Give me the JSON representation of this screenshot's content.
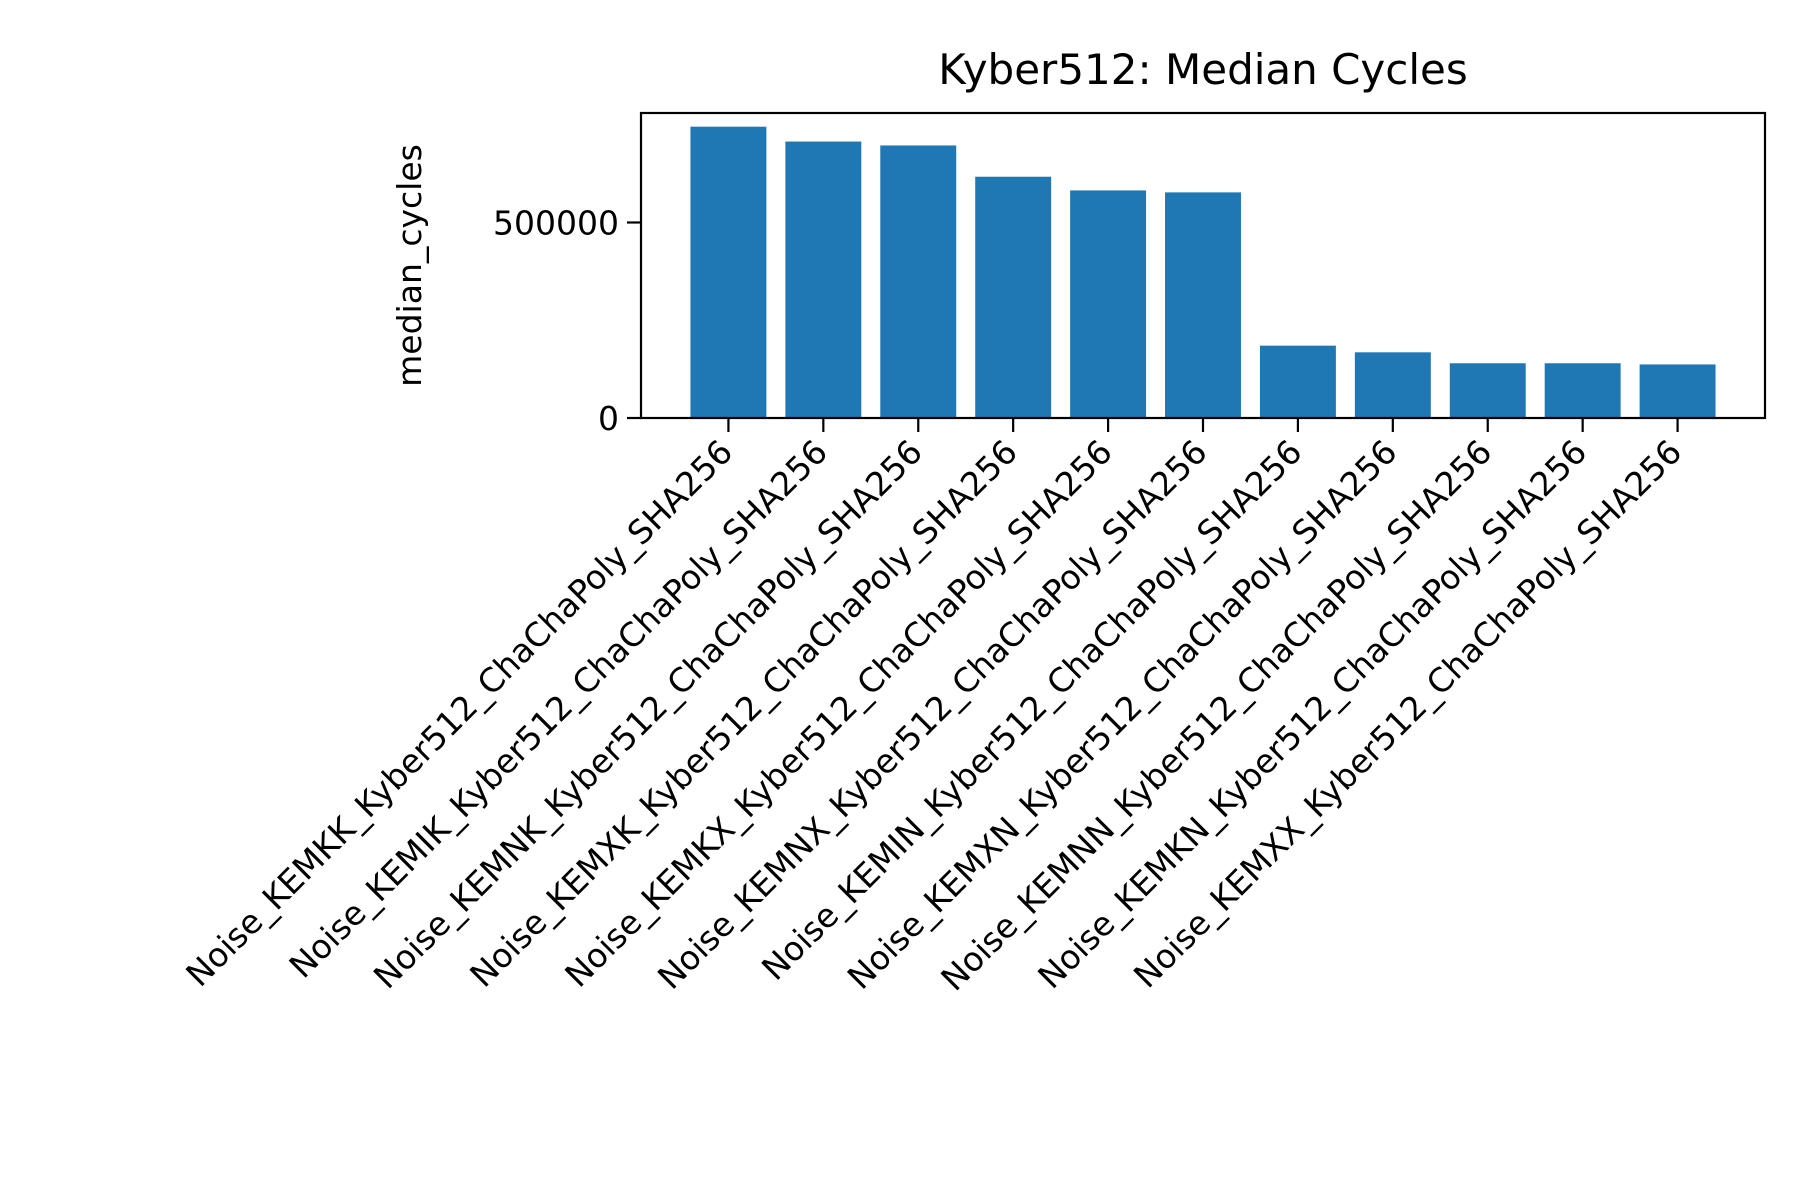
{
  "chart_data": {
    "type": "bar",
    "title": "Kyber512: Median Cycles",
    "xlabel": "",
    "ylabel": "median_cycles",
    "ylim": [
      0,
      780000
    ],
    "yticks": [
      0,
      500000
    ],
    "grid": false,
    "legend": "none",
    "bar_color": "#1f77b4",
    "categories": [
      "Noise_KEMKK_Kyber512_ChaChaPoly_SHA256",
      "Noise_KEMIK_Kyber512_ChaChaPoly_SHA256",
      "Noise_KEMNK_Kyber512_ChaChaPoly_SHA256",
      "Noise_KEMXK_Kyber512_ChaChaPoly_SHA256",
      "Noise_KEMKX_Kyber512_ChaChaPoly_SHA256",
      "Noise_KEMNX_Kyber512_ChaChaPoly_SHA256",
      "Noise_KEMIN_Kyber512_ChaChaPoly_SHA256",
      "Noise_KEMXN_Kyber512_ChaChaPoly_SHA256",
      "Noise_KEMNN_Kyber512_ChaChaPoly_SHA256",
      "Noise_KEMKN_Kyber512_ChaChaPoly_SHA256",
      "Noise_KEMXX_Kyber512_ChaChaPoly_SHA256"
    ],
    "values": [
      745000,
      707000,
      697000,
      617000,
      582000,
      577000,
      185000,
      168000,
      140000,
      140000,
      137000
    ]
  }
}
